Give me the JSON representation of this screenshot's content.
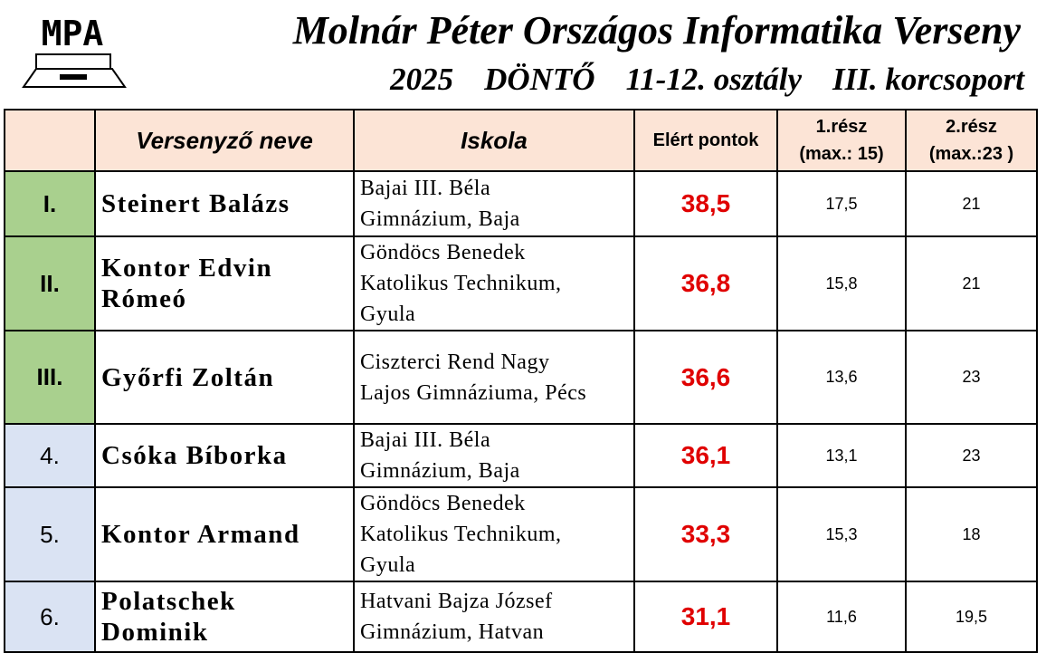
{
  "logo": "MPA",
  "header": {
    "title": "Molnár Péter Országos Informatika Verseny",
    "subtitle": [
      "2025",
      "DÖNTŐ",
      "11-12. osztály",
      "III. korcsoport"
    ]
  },
  "table": {
    "columns": [
      [
        ""
      ],
      [
        "Versenyző neve"
      ],
      [
        "Iskola"
      ],
      [
        "Elért pontok"
      ],
      [
        "1.rész",
        "(max.: 15)"
      ],
      [
        "2.rész",
        "(max.:23 )"
      ]
    ],
    "rows": [
      {
        "rank": "I.",
        "name": "Steinert Balázs",
        "school": [
          "Bajai III. Béla",
          "Gimnázium, Baja"
        ],
        "points": "38,5",
        "part1": "17,5",
        "part2": "21"
      },
      {
        "rank": "II.",
        "name": "Kontor Edvin Rómeó",
        "school": [
          "Göndöcs Benedek",
          "Katolikus Technikum,",
          "Gyula"
        ],
        "points": "36,8",
        "part1": "15,8",
        "part2": "21"
      },
      {
        "rank": "III.",
        "name": "Győrfi Zoltán",
        "school": [
          "Ciszterci Rend Nagy",
          "Lajos Gimnáziuma, Pécs"
        ],
        "points": "36,6",
        "part1": "13,6",
        "part2": "23"
      },
      {
        "rank": "4.",
        "name": "Csóka Bíborka",
        "school": [
          "Bajai III. Béla",
          "Gimnázium, Baja"
        ],
        "points": "36,1",
        "part1": "13,1",
        "part2": "23"
      },
      {
        "rank": "5.",
        "name": "Kontor Armand",
        "school": [
          "Göndöcs Benedek",
          "Katolikus Technikum,",
          "Gyula"
        ],
        "points": "33,3",
        "part1": "15,3",
        "part2": "18"
      },
      {
        "rank": "6.",
        "name": "Polatschek Dominik",
        "school": [
          "Hatvani Bajza József",
          "Gimnázium, Hatvan"
        ],
        "points": "31,1",
        "part1": "11,6",
        "part2": "19,5"
      }
    ]
  }
}
